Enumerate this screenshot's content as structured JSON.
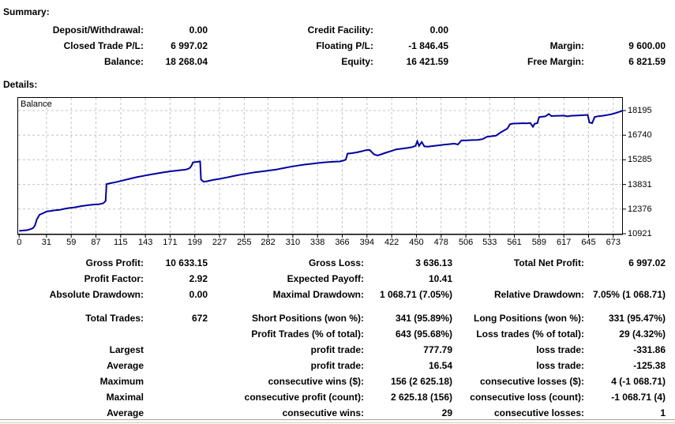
{
  "summary": {
    "heading": "Summary:",
    "rows": [
      [
        "Deposit/Withdrawal:",
        "0.00",
        "Credit Facility:",
        "0.00",
        "",
        ""
      ],
      [
        "Closed Trade P/L:",
        "6 997.02",
        "Floating P/L:",
        "-1 846.45",
        "Margin:",
        "9 600.00"
      ],
      [
        "Balance:",
        "18 268.04",
        "Equity:",
        "16 421.59",
        "Free Margin:",
        "6 821.59"
      ]
    ]
  },
  "details": {
    "heading": "Details:",
    "rows": [
      [
        "Gross Profit:",
        "10 633.15",
        "Gross Loss:",
        "3 636.13",
        "Total Net Profit:",
        "6 997.02"
      ],
      [
        "Profit Factor:",
        "2.92",
        "Expected Payoff:",
        "10.41",
        "",
        ""
      ],
      [
        "Absolute Drawdown:",
        "0.00",
        "Maximal Drawdown:",
        "1 068.71 (7.05%)",
        "Relative Drawdown:",
        "7.05% (1 068.71)"
      ],
      [
        "Total Trades:",
        "672",
        "Short Positions (won %):",
        "341 (95.89%)",
        "Long Positions (won %):",
        "331 (95.47%)"
      ],
      [
        "",
        "",
        "Profit Trades (% of total):",
        "643 (95.68%)",
        "Loss trades (% of total):",
        "29 (4.32%)"
      ],
      [
        "Largest",
        "",
        "profit trade:",
        "777.79",
        "loss trade:",
        "-331.86"
      ],
      [
        "Average",
        "",
        "profit trade:",
        "16.54",
        "loss trade:",
        "-125.38"
      ],
      [
        "Maximum",
        "",
        "consecutive wins ($):",
        "156 (2 625.18)",
        "consecutive losses ($):",
        "4 (-1 068.71)"
      ],
      [
        "Maximal",
        "",
        "consecutive profit (count):",
        "2 625.18 (156)",
        "consecutive loss (count):",
        "-1 068.71 (4)"
      ],
      [
        "Average",
        "",
        "consecutive wins:",
        "29",
        "consecutive losses:",
        "1"
      ]
    ]
  },
  "chart_data": {
    "type": "line",
    "title": "Balance",
    "legend": "Balance",
    "line_color": "#0000A0",
    "grid_color": "#c4c4c4",
    "grid": true,
    "x_ticks": [
      0,
      31,
      59,
      87,
      115,
      143,
      171,
      199,
      227,
      255,
      282,
      310,
      338,
      366,
      394,
      422,
      450,
      478,
      506,
      533,
      561,
      589,
      617,
      645,
      673
    ],
    "y_ticks": [
      10921,
      12376,
      13831,
      15285,
      16740,
      18195
    ],
    "xlim": [
      -2,
      683
    ],
    "ylim": [
      10921,
      18989
    ],
    "points": [
      [
        0,
        11090
      ],
      [
        5,
        11110
      ],
      [
        9,
        11130
      ],
      [
        13,
        11190
      ],
      [
        16,
        11260
      ],
      [
        18,
        11420
      ],
      [
        20,
        11760
      ],
      [
        23,
        12040
      ],
      [
        27,
        12130
      ],
      [
        31,
        12230
      ],
      [
        36,
        12270
      ],
      [
        41,
        12310
      ],
      [
        46,
        12330
      ],
      [
        51,
        12390
      ],
      [
        57,
        12440
      ],
      [
        63,
        12480
      ],
      [
        70,
        12550
      ],
      [
        77,
        12600
      ],
      [
        84,
        12640
      ],
      [
        90,
        12660
      ],
      [
        95,
        12710
      ],
      [
        97,
        12800
      ],
      [
        98,
        12860
      ],
      [
        99,
        13850
      ],
      [
        103,
        13900
      ],
      [
        109,
        13960
      ],
      [
        117,
        14060
      ],
      [
        125,
        14160
      ],
      [
        133,
        14260
      ],
      [
        141,
        14340
      ],
      [
        149,
        14420
      ],
      [
        157,
        14490
      ],
      [
        165,
        14560
      ],
      [
        173,
        14620
      ],
      [
        181,
        14660
      ],
      [
        189,
        14710
      ],
      [
        193,
        14790
      ],
      [
        195,
        14920
      ],
      [
        197,
        15130
      ],
      [
        202,
        15170
      ],
      [
        205,
        15190
      ],
      [
        206,
        14120
      ],
      [
        209,
        13990
      ],
      [
        213,
        14020
      ],
      [
        219,
        14090
      ],
      [
        227,
        14160
      ],
      [
        235,
        14240
      ],
      [
        243,
        14330
      ],
      [
        251,
        14410
      ],
      [
        259,
        14480
      ],
      [
        267,
        14550
      ],
      [
        275,
        14600
      ],
      [
        283,
        14650
      ],
      [
        291,
        14710
      ],
      [
        299,
        14790
      ],
      [
        307,
        14870
      ],
      [
        315,
        14940
      ],
      [
        323,
        15000
      ],
      [
        331,
        15050
      ],
      [
        339,
        15100
      ],
      [
        347,
        15140
      ],
      [
        355,
        15170
      ],
      [
        363,
        15190
      ],
      [
        367,
        15230
      ],
      [
        370,
        15300
      ],
      [
        372,
        15650
      ],
      [
        377,
        15680
      ],
      [
        383,
        15730
      ],
      [
        389,
        15800
      ],
      [
        393,
        15860
      ],
      [
        397,
        15870
      ],
      [
        402,
        15610
      ],
      [
        406,
        15540
      ],
      [
        410,
        15610
      ],
      [
        415,
        15700
      ],
      [
        421,
        15800
      ],
      [
        427,
        15900
      ],
      [
        433,
        15940
      ],
      [
        439,
        15980
      ],
      [
        445,
        16030
      ],
      [
        449,
        16110
      ],
      [
        451,
        16380
      ],
      [
        453,
        16110
      ],
      [
        456,
        16340
      ],
      [
        459,
        16080
      ],
      [
        463,
        16060
      ],
      [
        469,
        16100
      ],
      [
        475,
        16140
      ],
      [
        481,
        16180
      ],
      [
        487,
        16210
      ],
      [
        493,
        16240
      ],
      [
        497,
        16190
      ],
      [
        501,
        16430
      ],
      [
        507,
        16440
      ],
      [
        513,
        16450
      ],
      [
        519,
        16460
      ],
      [
        525,
        16510
      ],
      [
        530,
        16650
      ],
      [
        535,
        16680
      ],
      [
        540,
        16710
      ],
      [
        545,
        16890
      ],
      [
        549,
        17010
      ],
      [
        553,
        17130
      ],
      [
        556,
        17390
      ],
      [
        559,
        17420
      ],
      [
        563,
        17430
      ],
      [
        567,
        17440
      ],
      [
        571,
        17450
      ],
      [
        575,
        17440
      ],
      [
        579,
        17460
      ],
      [
        582,
        17240
      ],
      [
        584,
        17420
      ],
      [
        587,
        17450
      ],
      [
        589,
        17810
      ],
      [
        592,
        17830
      ],
      [
        596,
        17850
      ],
      [
        600,
        17990
      ],
      [
        603,
        17870
      ],
      [
        607,
        17880
      ],
      [
        612,
        17890
      ],
      [
        617,
        17900
      ],
      [
        621,
        17850
      ],
      [
        625,
        17890
      ],
      [
        630,
        17900
      ],
      [
        635,
        17910
      ],
      [
        640,
        17930
      ],
      [
        644,
        17940
      ],
      [
        646,
        17490
      ],
      [
        649,
        17450
      ],
      [
        652,
        17820
      ],
      [
        656,
        17860
      ],
      [
        661,
        17890
      ],
      [
        666,
        17930
      ],
      [
        671,
        17980
      ],
      [
        676,
        18050
      ],
      [
        680,
        18120
      ],
      [
        684,
        18195
      ]
    ]
  }
}
